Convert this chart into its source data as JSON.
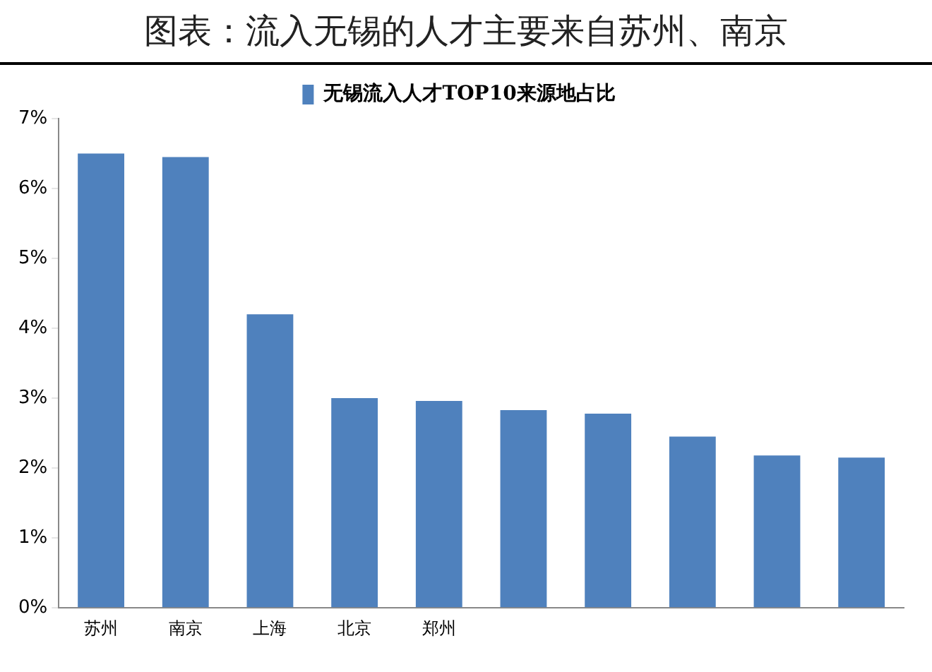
{
  "chart_data": {
    "type": "bar",
    "title": "图表：流入无锡的人才主要来自苏州、南京",
    "categories": [
      "苏州",
      "南京",
      "上海",
      "北京",
      "郑州",
      null,
      null,
      null,
      null,
      null
    ],
    "series": [
      {
        "name": "无锡流入人才TOP10来源地占比",
        "color": "#4f81bd",
        "values": [
          6.5,
          6.45,
          4.2,
          3.0,
          2.96,
          2.83,
          2.78,
          2.45,
          2.18,
          2.15
        ]
      }
    ],
    "ylim": [
      0,
      7
    ],
    "yticks": [
      {
        "value": 0,
        "label": "0%"
      },
      {
        "value": 1,
        "label": "1%"
      },
      {
        "value": 2,
        "label": "2%"
      },
      {
        "value": 3,
        "label": "3%"
      },
      {
        "value": 4,
        "label": "4%"
      },
      {
        "value": 5,
        "label": "5%"
      },
      {
        "value": 6,
        "label": "6%"
      },
      {
        "value": 7,
        "label": "7%"
      }
    ],
    "grid": false,
    "legend": "top"
  }
}
